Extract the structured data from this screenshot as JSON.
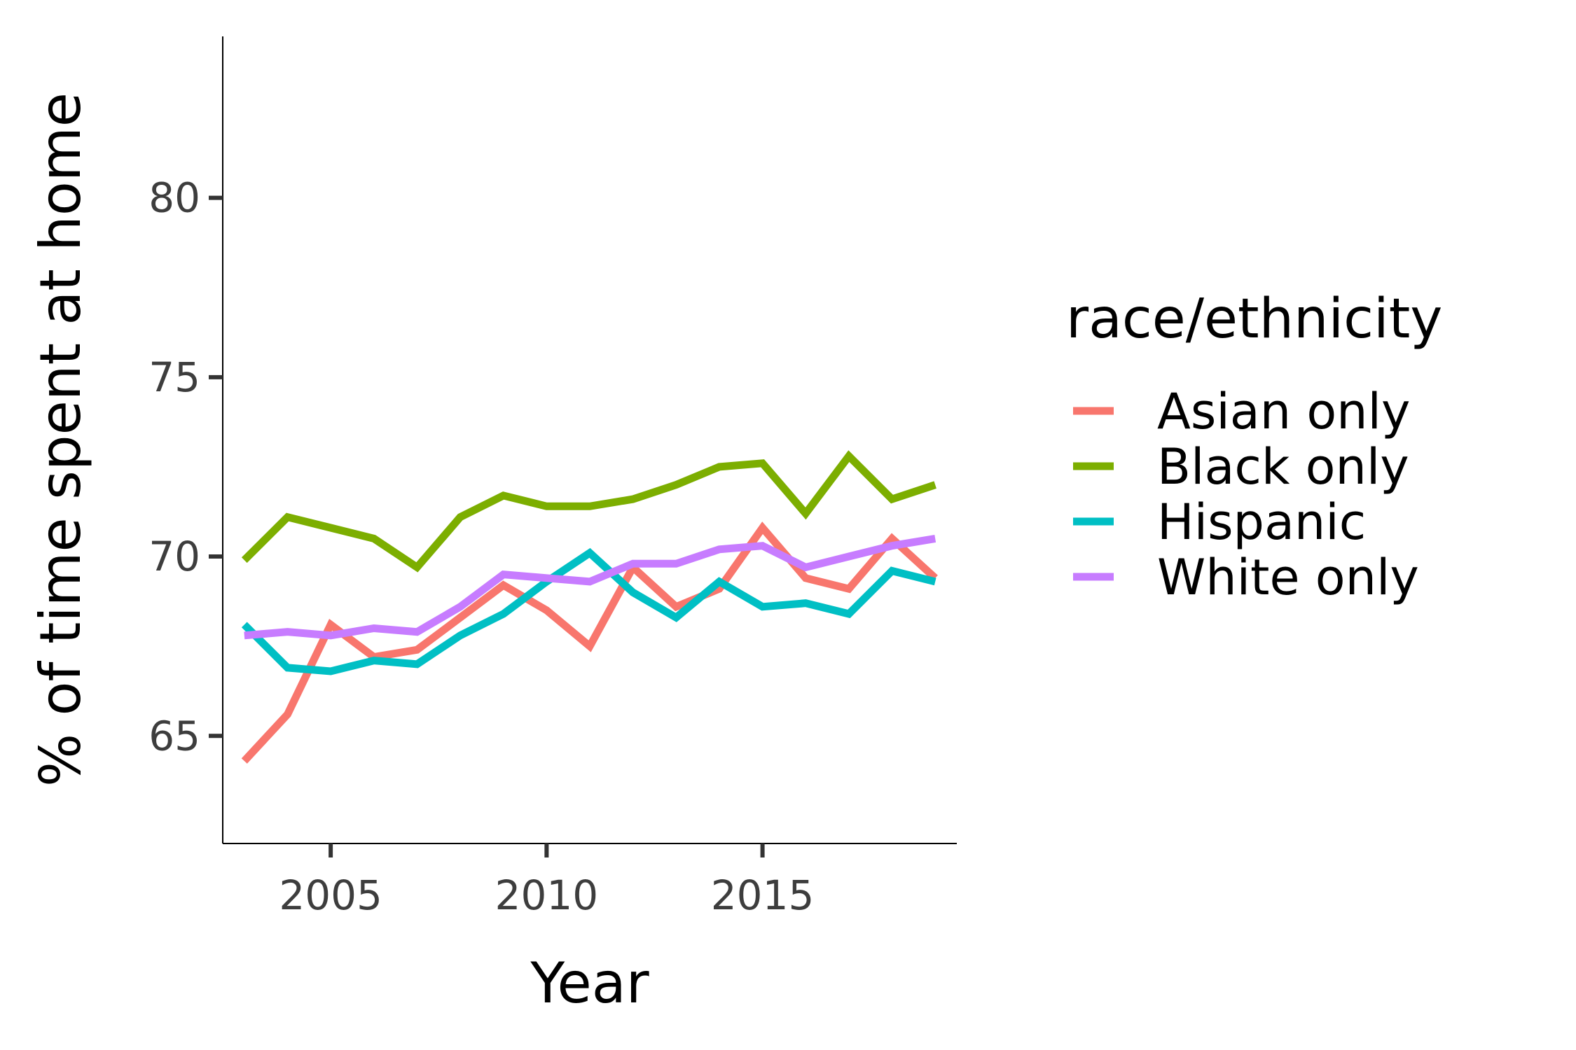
{
  "chart_data": {
    "type": "line",
    "title": "",
    "xlabel": "Year",
    "ylabel": "% of time spent at home",
    "xlim": [
      2002.5,
      2019.5
    ],
    "ylim": [
      62,
      84.5
    ],
    "xticks": [
      2005,
      2010,
      2015
    ],
    "yticks": [
      65,
      70,
      75,
      80
    ],
    "grid": false,
    "legend": {
      "title": "race/ethnicity",
      "placement": "right"
    },
    "x": [
      2003,
      2004,
      2005,
      2006,
      2007,
      2008,
      2009,
      2010,
      2011,
      2012,
      2013,
      2014,
      2015,
      2016,
      2017,
      2018,
      2019
    ],
    "series": [
      {
        "name": "Asian only",
        "color": "#F8766D",
        "values": [
          64.3,
          65.6,
          68.1,
          67.2,
          67.4,
          68.3,
          69.2,
          68.5,
          67.5,
          69.7,
          68.6,
          69.1,
          70.8,
          69.4,
          69.1,
          70.5,
          69.4
        ]
      },
      {
        "name": "Black only",
        "color": "#7CAE00",
        "values": [
          69.9,
          71.1,
          70.8,
          70.5,
          69.7,
          71.1,
          71.7,
          71.4,
          71.4,
          71.6,
          72.0,
          72.5,
          72.6,
          71.2,
          72.8,
          71.6,
          72.0
        ]
      },
      {
        "name": "Hispanic",
        "color": "#00BFC4",
        "values": [
          68.1,
          66.9,
          66.8,
          67.1,
          67.0,
          67.8,
          68.4,
          69.3,
          70.1,
          69.0,
          68.3,
          69.3,
          68.6,
          68.7,
          68.4,
          69.6,
          69.3
        ]
      },
      {
        "name": "White only",
        "color": "#C77CFF",
        "values": [
          67.8,
          67.9,
          67.8,
          68.0,
          67.9,
          68.6,
          69.5,
          69.4,
          69.3,
          69.8,
          69.8,
          70.2,
          70.3,
          69.7,
          70.0,
          70.3,
          70.5
        ]
      }
    ]
  }
}
